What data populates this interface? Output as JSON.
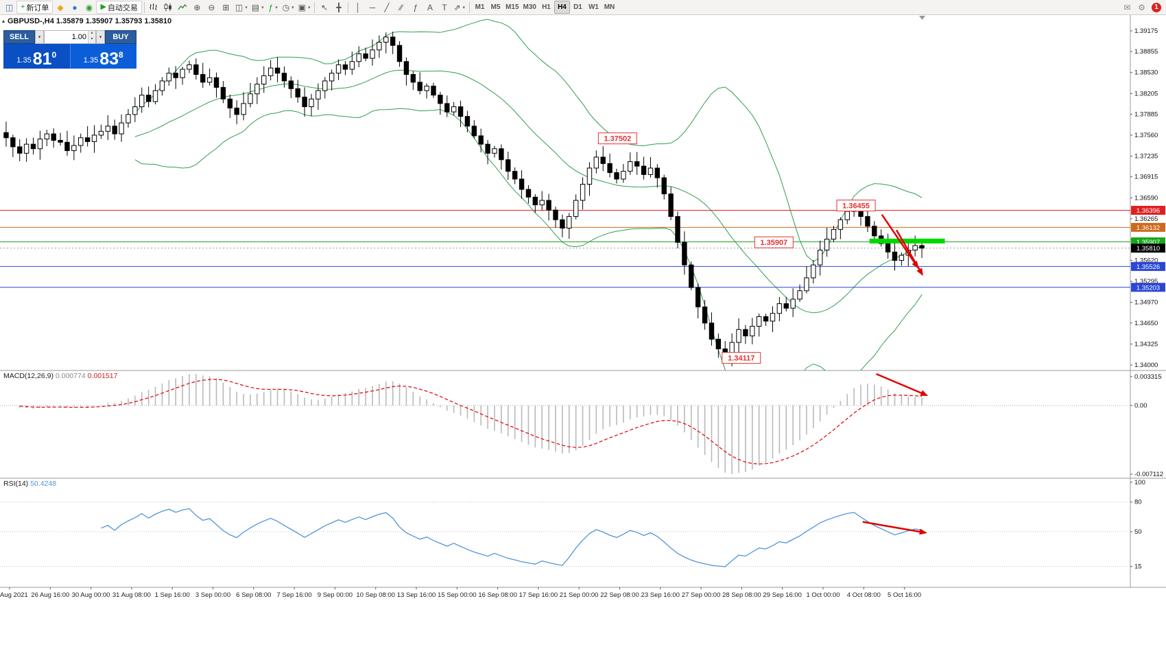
{
  "window": {
    "symbol_period": "GBPUSD-,H4",
    "ohlc": "1.35879 1.35907 1.35793 1.35810"
  },
  "toolbar": {
    "items": [
      {
        "name": "chart-window",
        "glyph": "◫",
        "color": "#4a6ea9"
      },
      {
        "name": "new-order",
        "glyph": "+",
        "color": "#12a012",
        "label": "新订单"
      },
      {
        "name": "mql-community",
        "glyph": "◆",
        "color": "#eaa71c"
      },
      {
        "name": "market-watch",
        "glyph": "●",
        "color": "#2a7ad2"
      },
      {
        "name": "data-window",
        "glyph": "◉",
        "color": "#2fa02f"
      },
      {
        "name": "autotrade",
        "glyph": "▶",
        "color": "#15a315",
        "label": "自动交易"
      },
      {
        "sep": true
      },
      {
        "name": "bar-chart-type",
        "svg": "bars"
      },
      {
        "name": "candle-chart-type",
        "svg": "candles"
      },
      {
        "name": "line-chart-type",
        "svg": "line"
      },
      {
        "name": "zoom-in",
        "glyph": "⊕"
      },
      {
        "name": "zoom-out",
        "glyph": "⊖"
      },
      {
        "name": "tile-windows",
        "glyph": "⊞"
      },
      {
        "name": "new-chart",
        "glyph": "◫",
        "caret": true
      },
      {
        "name": "profiles",
        "glyph": "▤",
        "caret": true
      },
      {
        "name": "indicators",
        "glyph": "ƒ",
        "color": "#12a012",
        "caret": true
      },
      {
        "name": "periods",
        "glyph": "◷",
        "caret": true
      },
      {
        "name": "templates",
        "glyph": "▣",
        "caret": true
      },
      {
        "sep": true
      },
      {
        "name": "cursor-tool",
        "glyph": "↖"
      },
      {
        "name": "crosshair-tool",
        "glyph": "╋"
      },
      {
        "sep": true
      },
      {
        "name": "vertical-line-tool",
        "glyph": "│"
      },
      {
        "name": "horizontal-line-tool",
        "glyph": "─"
      },
      {
        "name": "trendline-tool",
        "glyph": "╱"
      },
      {
        "name": "channel-tool",
        "glyph": "∕∕"
      },
      {
        "name": "fibonacci-tool",
        "glyph": "ƒ"
      },
      {
        "name": "text-tool",
        "glyph": "A"
      },
      {
        "name": "label-tool",
        "glyph": "T"
      },
      {
        "name": "arrows-tool",
        "glyph": "⇗",
        "caret": true
      },
      {
        "sep": true
      },
      {
        "name": "tf-m1",
        "label": "M1",
        "tf": true
      },
      {
        "name": "tf-m5",
        "label": "M5",
        "tf": true
      },
      {
        "name": "tf-m15",
        "label": "M15",
        "tf": true
      },
      {
        "name": "tf-m30",
        "label": "M30",
        "tf": true
      },
      {
        "name": "tf-h1",
        "label": "H1",
        "tf": true
      },
      {
        "name": "tf-h4",
        "label": "H4",
        "tf": true,
        "active": true
      },
      {
        "name": "tf-d1",
        "label": "D1",
        "tf": true
      },
      {
        "name": "tf-w1",
        "label": "W1",
        "tf": true
      },
      {
        "name": "tf-mn",
        "label": "MN",
        "tf": true
      },
      {
        "spacer": true
      },
      {
        "name": "community-chat",
        "glyph": "✉",
        "color": "#8a8a8a"
      },
      {
        "name": "settings",
        "glyph": "⚙",
        "color": "#8a8a8a"
      },
      {
        "name": "notifications",
        "badge": "1"
      }
    ]
  },
  "trade_panel": {
    "sell_label": "SELL",
    "buy_label": "BUY",
    "volume": "1.00",
    "sell_price": {
      "prefix": "1.35",
      "big": "81",
      "sup": "0"
    },
    "buy_price": {
      "prefix": "1.35",
      "big": "83",
      "sup": "8"
    }
  },
  "price_axis": {
    "labels": [
      "1.39175",
      "1.38855",
      "1.38530",
      "1.38205",
      "1.37885",
      "1.37560",
      "1.37235",
      "1.36915",
      "1.36590",
      "1.36265",
      "1.35940",
      "1.35620",
      "1.35295",
      "1.34970",
      "1.34650",
      "1.34325",
      "1.34000"
    ],
    "tags": [
      {
        "text": "1.36396",
        "bg": "#e02020"
      },
      {
        "text": "1.36132",
        "bg": "#cd6a1c"
      },
      {
        "text": "1.35907",
        "bg": "#18a818"
      },
      {
        "text": "1.35810",
        "bg": "#000000"
      },
      {
        "text": "1.35526",
        "bg": "#2b47d8"
      },
      {
        "text": "1.35203",
        "bg": "#2b47d8"
      }
    ]
  },
  "time_axis": {
    "labels": [
      "25 Aug 2021",
      "26 Aug 16:00",
      "30 Aug 00:00",
      "31 Aug 08:00",
      "1 Sep 16:00",
      "3 Sep 00:00",
      "6 Sep 08:00",
      "7 Sep 16:00",
      "9 Sep 00:00",
      "10 Sep 08:00",
      "13 Sep 16:00",
      "15 Sep 00:00",
      "16 Sep 08:00",
      "17 Sep 16:00",
      "21 Sep 00:00",
      "22 Sep 08:00",
      "23 Sep 16:00",
      "27 Sep 00:00",
      "28 Sep 08:00",
      "29 Sep 16:00",
      "1 Oct 00:00",
      "4 Oct 08:00",
      "5 Oct 16:00"
    ]
  },
  "macd": {
    "name": "MACD(12,26,9)",
    "value1": "0.000774",
    "value2": "0.001517",
    "axis": [
      "0.003315",
      "0.00",
      "-0.007112"
    ]
  },
  "rsi": {
    "name": "RSI(14)",
    "value": "50.4248",
    "axis": [
      "100",
      "80",
      "50",
      "15"
    ]
  },
  "chart_data": {
    "type": "candlestick",
    "symbol": "GBPUSD-",
    "timeframe": "H4",
    "price_axis_top_label_value": 1.39175,
    "price_axis_bottom_label_value": 1.34,
    "first_open": 1.376,
    "closes": [
      1.3752,
      1.3738,
      1.3728,
      1.3742,
      1.3735,
      1.375,
      1.3758,
      1.3748,
      1.3745,
      1.3732,
      1.374,
      1.3752,
      1.3746,
      1.3756,
      1.3762,
      1.377,
      1.3758,
      1.3775,
      1.3788,
      1.38,
      1.3818,
      1.3808,
      1.3825,
      1.384,
      1.3852,
      1.3845,
      1.3858,
      1.3865,
      1.385,
      1.3838,
      1.3845,
      1.383,
      1.3812,
      1.3798,
      1.3788,
      1.3805,
      1.382,
      1.3835,
      1.3848,
      1.386,
      1.3852,
      1.384,
      1.3828,
      1.3815,
      1.38,
      1.3812,
      1.3825,
      1.384,
      1.3852,
      1.3865,
      1.3858,
      1.387,
      1.3882,
      1.3875,
      1.3888,
      1.39,
      1.3908,
      1.3895,
      1.387,
      1.385,
      1.3838,
      1.3825,
      1.3832,
      1.3818,
      1.3805,
      1.3792,
      1.38,
      1.3785,
      1.377,
      1.3755,
      1.3742,
      1.3728,
      1.3735,
      1.3718,
      1.37,
      1.3688,
      1.3672,
      1.366,
      1.3648,
      1.3655,
      1.364,
      1.3625,
      1.3612,
      1.363,
      1.3655,
      1.368,
      1.3705,
      1.3722,
      1.3712,
      1.3698,
      1.3688,
      1.37,
      1.3715,
      1.3708,
      1.3695,
      1.3705,
      1.369,
      1.3665,
      1.363,
      1.359,
      1.3555,
      1.352,
      1.349,
      1.3465,
      1.344,
      1.3425,
      1.3415,
      1.3435,
      1.3455,
      1.3445,
      1.346,
      1.3475,
      1.3468,
      1.348,
      1.3495,
      1.3488,
      1.3502,
      1.3515,
      1.3535,
      1.3555,
      1.3578,
      1.3595,
      1.361,
      1.3625,
      1.3638,
      1.3645,
      1.363,
      1.3615,
      1.36,
      1.3588,
      1.3575,
      1.3562,
      1.357,
      1.3578,
      1.3585,
      1.3581
    ],
    "bollinger": {
      "period": 20,
      "deviation": 2,
      "color": "#2f9e4f"
    },
    "macd_params": {
      "fast": 12,
      "slow": 26,
      "signal": 9
    },
    "macd_colors": {
      "histogram": "#b9b9b9",
      "signal": "#e00000"
    },
    "rsi_params": {
      "period": 14,
      "levels": [
        80,
        50,
        15
      ]
    },
    "rsi_color": "#4f94d8",
    "horizontal_lines": [
      {
        "price": 1.36396,
        "color": "#e02020",
        "label": "1.36396"
      },
      {
        "price": 1.36132,
        "color": "#cd6a1c",
        "label": "1.36132"
      },
      {
        "price": 1.35907,
        "color": "#22a022",
        "label": "1.35907"
      },
      {
        "price": 1.35526,
        "color": "#2b47d8",
        "label": "1.35526"
      },
      {
        "price": 1.35203,
        "color": "#2b47d8",
        "label": "1.35203"
      }
    ],
    "current_price": 1.3581,
    "green_bar": {
      "x1": 0.773,
      "x2": 0.84,
      "price": 1.3592,
      "thickness": 7,
      "color": "#00d800"
    },
    "callouts": [
      {
        "text": "1.37502",
        "x": 0.549,
        "price": 1.3751
      },
      {
        "text": "1.36455",
        "x": 0.761,
        "price": 1.3647
      },
      {
        "text": "1.35907",
        "x": 0.688,
        "price": 1.359
      },
      {
        "text": "1.34117",
        "x": 0.659,
        "price": 1.3411
      }
    ],
    "arrows_main": [
      {
        "x1": 0.784,
        "p1": 1.3633,
        "x2": 0.816,
        "p2": 1.3551
      },
      {
        "x1": 0.797,
        "p1": 1.3609,
        "x2": 0.82,
        "p2": 1.354
      }
    ],
    "arrow_macd": {
      "x1": 0.779,
      "v1": 0.0028,
      "x2": 0.824,
      "v2": 0.0009
    },
    "arrow_rsi": {
      "x1": 0.767,
      "v1": 60,
      "x2": 0.823,
      "v2": 49
    },
    "arrow_color": "#e00000"
  }
}
